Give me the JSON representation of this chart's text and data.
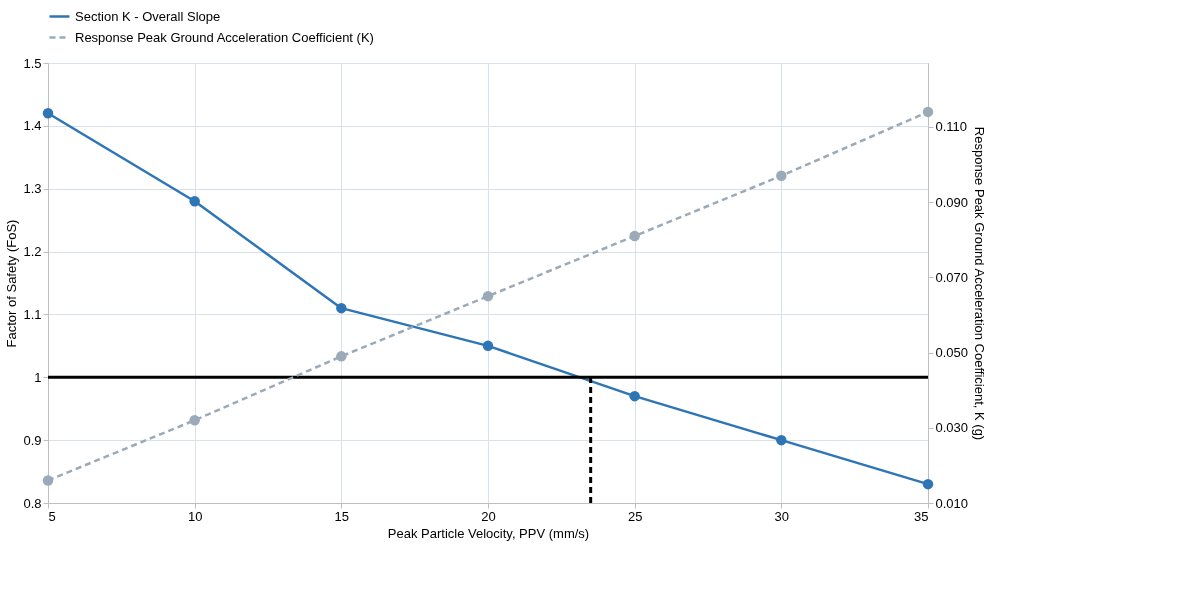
{
  "chart_data": {
    "type": "line",
    "xlabel": "Peak Particle Velocity, PPV (mm/s)",
    "ylabel": "Factor of Safety (FoS)",
    "y2label": "Response Peak Ground Acceleration Coefficient, K (g)",
    "x": [
      5,
      10,
      15,
      20,
      25,
      30,
      35
    ],
    "series": [
      {
        "name": "Section K - Overall Slope",
        "color": "#2e75b6",
        "values": [
          1.42,
          1.28,
          1.11,
          1.05,
          0.97,
          0.9,
          0.83
        ],
        "line_style": "solid"
      },
      {
        "name": "Response Peak Ground Acceleration Coefficient (K)",
        "color": "#9aaab8",
        "values": [
          0.016,
          0.032,
          0.049,
          0.065,
          0.081,
          0.097,
          0.114
        ],
        "axis": "y2",
        "line_style": "dashed"
      }
    ],
    "xlim": [
      5,
      35
    ],
    "xticks": [
      5,
      10,
      15,
      20,
      25,
      30,
      35
    ],
    "ylim": [
      0.8,
      1.5
    ],
    "yticks": [
      0.8,
      0.9,
      1,
      1.1,
      1.2,
      1.3,
      1.4,
      1.5
    ],
    "y2lim": [
      0.01,
      0.127
    ],
    "y2ticks": [
      {
        "value": 0.01,
        "label": "0.010"
      },
      {
        "value": 0.03,
        "label": "0.030"
      },
      {
        "value": 0.05,
        "label": "0.050"
      },
      {
        "value": 0.07,
        "label": "0.070"
      },
      {
        "value": 0.09,
        "label": "0.090"
      },
      {
        "value": 0.11,
        "label": "0.110"
      }
    ],
    "ref_lines": [
      {
        "axis": "y",
        "value": 1,
        "color": "#000000",
        "line_style": "solid"
      },
      {
        "axis": "x",
        "value": 23.5,
        "color": "#000000",
        "line_style": "dashed"
      }
    ],
    "grid": true,
    "legend": "top",
    "marker": "circle"
  }
}
